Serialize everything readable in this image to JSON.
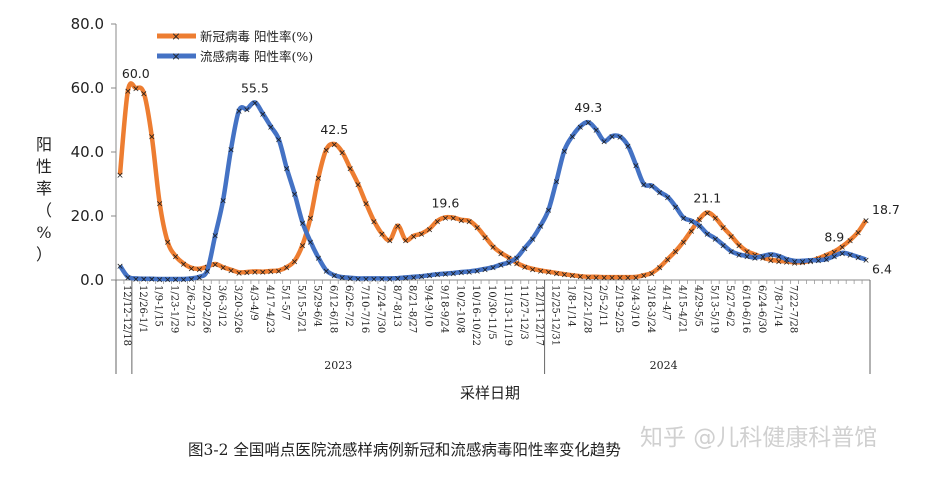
{
  "caption": "图3-2   全国哨点医院流感样病例新冠和流感病毒阳性率变化趋势",
  "watermark": "知乎 @儿科健康科普馆",
  "chart_data": {
    "type": "line",
    "title": "",
    "xlabel": "采样日期",
    "ylabel": "阳性率（%）",
    "ylim": [
      0,
      80
    ],
    "yticks": [
      "0.0",
      "20.0",
      "40.0",
      "60.0",
      "80.0"
    ],
    "legend_position": "top-left",
    "grid": false,
    "years": [
      {
        "label": "2023",
        "from": 2,
        "to": 54
      },
      {
        "label": "2024",
        "from": 54,
        "to": 84
      }
    ],
    "x_labels": [
      "12/12-12/18",
      "12/26-1/1",
      "1/9-1/15",
      "1/23-1/29",
      "2/6-2/12",
      "2/20-2/26",
      "3/6-3/12",
      "3/20-3/26",
      "4/3-4/9",
      "4/17-4/23",
      "5/1-5/7",
      "5/15-5/21",
      "5/29-6/4",
      "6/12-6/18",
      "6/26-7/2",
      "7/10-7/16",
      "7/24-7/30",
      "8/7-8/13",
      "8/21-8/27",
      "9/4-9/10",
      "9/18-9/24",
      "10/2-10/8",
      "10/16-10/22",
      "10/30-11/5",
      "11/13-11/19",
      "11/27-12/3",
      "12/11-12/17",
      "12/25-12/31",
      "1/8-1/14",
      "1/22-1/28",
      "2/5-2/11",
      "2/19-2/25",
      "3/4-3/10",
      "3/18-3/24",
      "4/1-4/7",
      "4/15-4/21",
      "4/29-5/5",
      "5/13-5/19",
      "5/27-6/2",
      "6/10-6/16",
      "6/24-6/30",
      "7/8-7/14",
      "7/22-7/28"
    ],
    "series": [
      {
        "name": "新冠病毒 阳性率(%)",
        "color": "#ED7D31",
        "values": [
          33.0,
          59.2,
          60.0,
          58.5,
          45.0,
          24.0,
          12.0,
          7.5,
          5.2,
          3.8,
          3.5,
          4.2,
          5.0,
          4.0,
          3.2,
          2.4,
          2.5,
          2.7,
          2.6,
          2.8,
          3.0,
          4.0,
          6.0,
          11.0,
          19.5,
          32.0,
          40.8,
          42.5,
          40.0,
          35.0,
          30.0,
          24.0,
          18.5,
          14.5,
          12.5,
          17.0,
          12.5,
          13.8,
          14.5,
          16.0,
          18.5,
          19.6,
          19.5,
          18.8,
          18.5,
          16.5,
          13.5,
          10.5,
          8.5,
          7.0,
          5.3,
          4.2,
          3.5,
          3.0,
          2.6,
          2.2,
          1.8,
          1.5,
          1.2,
          1.0,
          1.0,
          0.9,
          0.9,
          0.9,
          0.9,
          1.0,
          1.5,
          2.2,
          4.0,
          6.5,
          9.0,
          12.0,
          15.5,
          19.0,
          21.1,
          19.5,
          16.5,
          13.8,
          11.0,
          9.0,
          8.0,
          7.0,
          6.3,
          6.0,
          5.8,
          5.5,
          5.6,
          6.0,
          6.8,
          7.8,
          8.9,
          10.5,
          12.5,
          15.0,
          18.7
        ],
        "peaks": [
          {
            "index": 2,
            "label": "60.0"
          },
          {
            "index": 27,
            "label": "42.5"
          },
          {
            "index": 41,
            "label": "19.6"
          },
          {
            "index": 74,
            "label": "21.1"
          },
          {
            "index": 90,
            "label": "8.9"
          },
          {
            "index": 94,
            "label": "18.7"
          }
        ]
      },
      {
        "name": "流感病毒 阳性率(%)",
        "color": "#4472C4",
        "values": [
          4.5,
          1.0,
          0.5,
          0.4,
          0.4,
          0.3,
          0.3,
          0.3,
          0.3,
          0.5,
          1.0,
          3.0,
          14.0,
          25.0,
          41.0,
          53.0,
          53.5,
          55.5,
          52.0,
          48.0,
          44.0,
          35.0,
          27.0,
          18.0,
          12.0,
          7.0,
          3.0,
          1.5,
          0.9,
          0.7,
          0.5,
          0.5,
          0.5,
          0.5,
          0.5,
          0.6,
          0.8,
          1.0,
          1.2,
          1.5,
          1.8,
          2.0,
          2.2,
          2.5,
          2.7,
          3.0,
          3.5,
          4.0,
          4.8,
          5.5,
          7.0,
          10.0,
          13.0,
          17.0,
          22.0,
          31.0,
          40.5,
          45.0,
          48.0,
          49.3,
          47.0,
          43.5,
          45.0,
          44.8,
          42.0,
          36.0,
          30.0,
          29.5,
          27.5,
          26.0,
          23.0,
          19.5,
          18.5,
          17.0,
          14.5,
          13.0,
          11.0,
          9.0,
          8.0,
          7.5,
          7.0,
          7.5,
          8.0,
          7.5,
          6.5,
          6.0,
          6.0,
          6.2,
          6.2,
          6.5,
          7.5,
          8.5,
          8.0,
          7.2,
          6.4
        ],
        "peaks": [
          {
            "index": 17,
            "label": "55.5"
          },
          {
            "index": 59,
            "label": "49.3"
          },
          {
            "index": 94,
            "label": "6.4"
          }
        ]
      }
    ]
  }
}
